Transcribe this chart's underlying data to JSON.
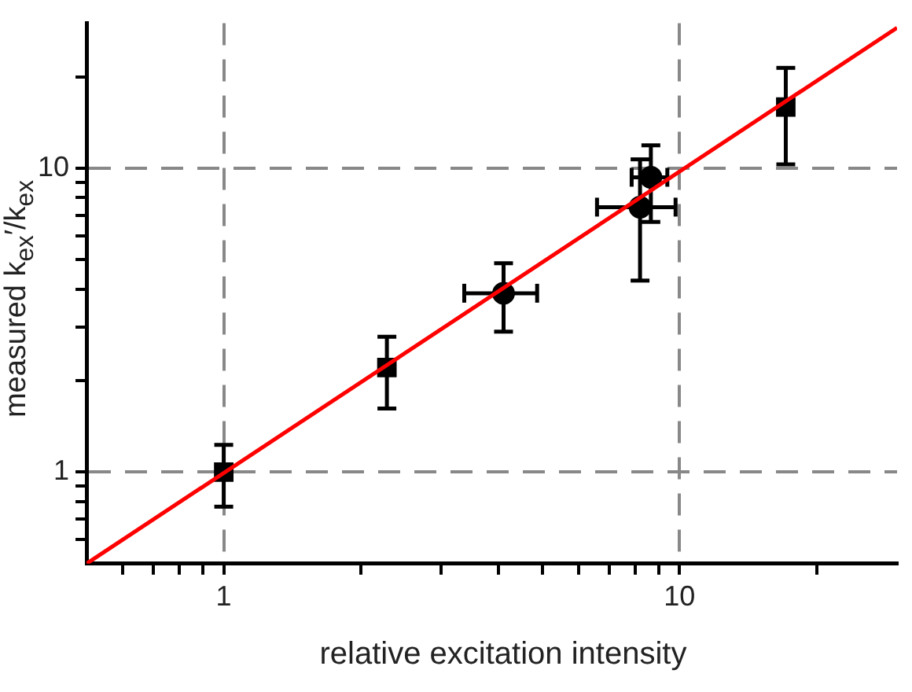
{
  "chart_data": {
    "type": "scatter",
    "xlabel": "relative excitation intensity",
    "ylabel": "measured k$_{ex}$′/k$_{ex}$",
    "log": "xy",
    "grid": true,
    "legend": false,
    "xlim": [
      0.5,
      30
    ],
    "ylim": [
      0.5,
      30
    ],
    "xticks": [
      {
        "value": 0.6,
        "label": null
      },
      {
        "value": 0.7,
        "label": null
      },
      {
        "value": 0.8,
        "label": null
      },
      {
        "value": 0.9,
        "label": null
      },
      1,
      {
        "value": 2,
        "label": null
      },
      {
        "value": 3,
        "label": null
      },
      {
        "value": 4,
        "label": null
      },
      {
        "value": 5,
        "label": null
      },
      {
        "value": 6,
        "label": null
      },
      {
        "value": 7,
        "label": null
      },
      {
        "value": 8,
        "label": null
      },
      {
        "value": 9,
        "label": null
      },
      10,
      {
        "value": 20,
        "label": null
      }
    ],
    "yticks": [
      {
        "value": 0.6,
        "label": null
      },
      {
        "value": 0.7,
        "label": null
      },
      {
        "value": 0.8,
        "label": null
      },
      {
        "value": 0.9,
        "label": null
      },
      1,
      {
        "value": 2,
        "label": null
      },
      {
        "value": 3,
        "label": null
      },
      {
        "value": 4,
        "label": null
      },
      {
        "value": 5,
        "label": null
      },
      {
        "value": 6,
        "label": null
      },
      {
        "value": 7,
        "label": null
      },
      {
        "value": 8,
        "label": null
      },
      {
        "value": 9,
        "label": null
      },
      10,
      {
        "value": 20,
        "label": null
      }
    ],
    "series": [
      {
        "type": "line",
        "color": "#ff0000",
        "marker": "none",
        "line_style": "solid",
        "x": [
          0.5,
          30
        ],
        "values": [
          0.5,
          29
        ]
      },
      {
        "color": "#000000",
        "marker": "square",
        "x": [
          1,
          2.28,
          17.1
        ],
        "values": [
          1,
          2.21,
          15.9
        ],
        "errors": [
          [
            0.77,
            1.23
          ],
          [
            1.62,
            2.79
          ],
          [
            10.3,
            21.4
          ]
        ]
      },
      {
        "color": "#000000",
        "marker": "circle",
        "x": [
          4.11,
          8.19,
          8.65
        ],
        "values": [
          3.88,
          7.45,
          9.34
        ],
        "errors": [
          [
            2.9,
            4.87
          ],
          [
            4.27,
            10.7
          ],
          [
            6.66,
            11.9
          ]
        ],
        "xerrors": [
          [
            3.37,
            4.87
          ],
          [
            6.59,
            9.8
          ],
          [
            7.85,
            9.4
          ]
        ]
      }
    ]
  }
}
